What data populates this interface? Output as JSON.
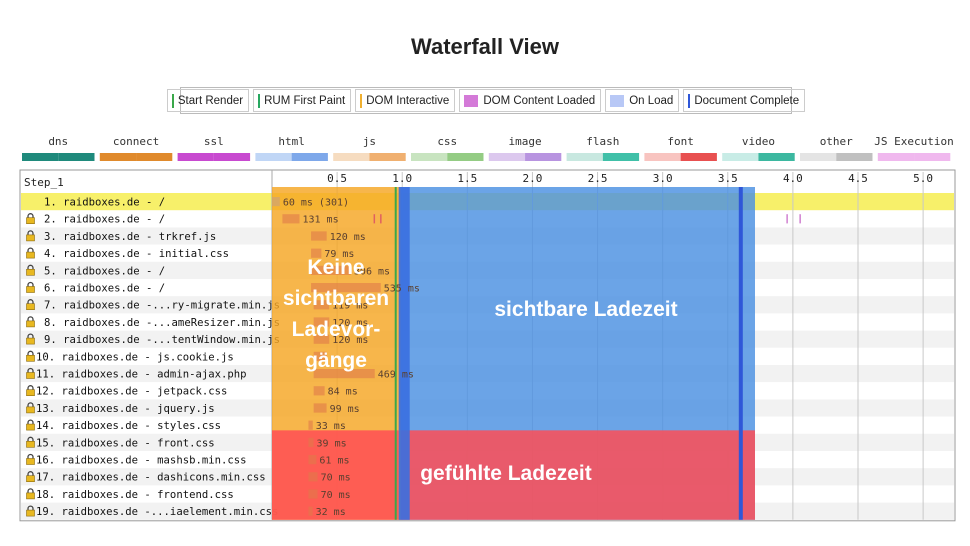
{
  "title": "Waterfall View",
  "legend": [
    {
      "label": "Start Render",
      "color": "#3aa84a",
      "kind": "line"
    },
    {
      "label": "RUM First Paint",
      "color": "#28a860",
      "kind": "line"
    },
    {
      "label": "DOM Interactive",
      "color": "#f0b030",
      "kind": "line"
    },
    {
      "label": "DOM Content Loaded",
      "color": "#d47ad8",
      "kind": "swatch"
    },
    {
      "label": "On Load",
      "color": "#b8c8f6",
      "kind": "swatch"
    },
    {
      "label": "Document Complete",
      "color": "#2f57d8",
      "kind": "line"
    }
  ],
  "types": [
    {
      "label": "dns",
      "colors": [
        "#1f8a7c",
        "#1f8a7c"
      ]
    },
    {
      "label": "connect",
      "colors": [
        "#e08a2c",
        "#e08a2c"
      ]
    },
    {
      "label": "ssl",
      "colors": [
        "#c84ad0",
        "#c84ad0"
      ]
    },
    {
      "label": "html",
      "colors": [
        "#c0d6f6",
        "#7ea8ea"
      ]
    },
    {
      "label": "js",
      "colors": [
        "#f6dcc0",
        "#f0b070"
      ]
    },
    {
      "label": "css",
      "colors": [
        "#c8e4c0",
        "#94cc84"
      ]
    },
    {
      "label": "image",
      "colors": [
        "#dcc8ee",
        "#b894e0"
      ]
    },
    {
      "label": "flash",
      "colors": [
        "#c8e8e0",
        "#40c0a8"
      ]
    },
    {
      "label": "font",
      "colors": [
        "#f8c4c0",
        "#e85050"
      ]
    },
    {
      "label": "video",
      "colors": [
        "#c8ece6",
        "#3cb8a0"
      ]
    },
    {
      "label": "other",
      "colors": [
        "#e4e4e4",
        "#c0c0c0"
      ]
    },
    {
      "label": "JS Execution",
      "colors": [
        "#f0b8ee",
        "#f0b8ee"
      ]
    }
  ],
  "step_label": "Step_1",
  "chart_data": {
    "type": "bar",
    "title": "Waterfall View",
    "xlabel": "",
    "x_unit": "s",
    "xlim": [
      0,
      5.2
    ],
    "ticks": [
      "0.5",
      "1.0",
      "1.5",
      "2.0",
      "2.5",
      "3.0",
      "3.5",
      "4.0",
      "4.5",
      "5.0"
    ],
    "tick_values": [
      0.5,
      1.0,
      1.5,
      2.0,
      2.5,
      3.0,
      3.5,
      4.0,
      4.5,
      5.0
    ],
    "rows": [
      {
        "label": "1. raidboxes.de - /",
        "lock": false,
        "start": 0.0,
        "duration": 0.06,
        "text": "60 ms (301)"
      },
      {
        "label": "2. raidboxes.de - /",
        "lock": true,
        "start": 0.08,
        "duration": 0.131,
        "text": "131 ms"
      },
      {
        "label": "3. raidboxes.de - trkref.js",
        "lock": true,
        "start": 0.3,
        "duration": 0.12,
        "text": "120 ms"
      },
      {
        "label": "4. raidboxes.de - initial.css",
        "lock": true,
        "start": 0.3,
        "duration": 0.079,
        "text": "79 ms"
      },
      {
        "label": "5. raidboxes.de - /",
        "lock": true,
        "start": 0.3,
        "duration": 0.306,
        "text": "306 ms"
      },
      {
        "label": "6. raidboxes.de - /",
        "lock": true,
        "start": 0.3,
        "duration": 0.535,
        "text": "535 ms"
      },
      {
        "label": "7. raidboxes.de -...ry-migrate.min.js",
        "lock": true,
        "start": 0.32,
        "duration": 0.119,
        "text": "119 ms"
      },
      {
        "label": "8. raidboxes.de -...ameResizer.min.js",
        "lock": true,
        "start": 0.32,
        "duration": 0.12,
        "text": "120 ms"
      },
      {
        "label": "9. raidboxes.de -...tentWindow.min.js",
        "lock": true,
        "start": 0.32,
        "duration": 0.12,
        "text": "120 ms"
      },
      {
        "label": "10. raidboxes.de - js.cookie.js",
        "lock": true,
        "start": 0.32,
        "duration": 0.1,
        "text": ""
      },
      {
        "label": "11. raidboxes.de - admin-ajax.php",
        "lock": true,
        "start": 0.32,
        "duration": 0.469,
        "text": "469 ms"
      },
      {
        "label": "12. raidboxes.de - jetpack.css",
        "lock": true,
        "start": 0.32,
        "duration": 0.084,
        "text": "84 ms"
      },
      {
        "label": "13. raidboxes.de - jquery.js",
        "lock": true,
        "start": 0.32,
        "duration": 0.099,
        "text": "99 ms"
      },
      {
        "label": "14. raidboxes.de - styles.css",
        "lock": true,
        "start": 0.28,
        "duration": 0.033,
        "text": "33 ms"
      },
      {
        "label": "15. raidboxes.de - front.css",
        "lock": true,
        "start": 0.28,
        "duration": 0.039,
        "text": "39 ms"
      },
      {
        "label": "16. raidboxes.de - mashsb.min.css",
        "lock": true,
        "start": 0.28,
        "duration": 0.061,
        "text": "61 ms"
      },
      {
        "label": "17. raidboxes.de - dashicons.min.css",
        "lock": true,
        "start": 0.28,
        "duration": 0.07,
        "text": "70 ms"
      },
      {
        "label": "18. raidboxes.de - frontend.css",
        "lock": true,
        "start": 0.28,
        "duration": 0.07,
        "text": "70 ms"
      },
      {
        "label": "19. raidboxes.de -...iaelement.min.css",
        "lock": true,
        "start": 0.28,
        "duration": 0.032,
        "text": "32 ms"
      }
    ],
    "markers": [
      {
        "label": "Start Render",
        "value": 0.95,
        "color": "#3aa84a"
      },
      {
        "label": "DOM Interactive",
        "value": 0.98,
        "color": "#f0b030"
      },
      {
        "label": "Document Complete",
        "value": 3.6,
        "color": "#2f57d8"
      }
    ],
    "annotations": {
      "left": "Keine sichtbaren Ladevor-gänge",
      "left_lines": [
        "Keine",
        "sichtbaren",
        "Ladevor-",
        "gänge"
      ],
      "middle": "sichtbare Ladezeit",
      "bottom": "gefühlte Ladezeit"
    }
  }
}
